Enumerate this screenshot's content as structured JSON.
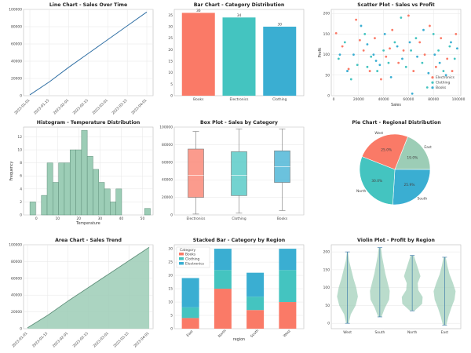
{
  "colors": {
    "red": "#fa7a67",
    "teal": "#44c4c0",
    "blue": "#3aaed2",
    "sage": "#9ccdb6",
    "sageDark": "#5f8f7a",
    "line": "#2f6fa4"
  },
  "chart_data": [
    {
      "id": "line",
      "type": "line",
      "title": "Line Chart - Sales Over Time",
      "x": [
        "2023-01-01",
        "2023-01-15",
        "2023-02-01",
        "2023-02-15",
        "2023-03-01",
        "2023-03-15",
        "2023-04-01"
      ],
      "y": [
        1000,
        16000,
        33000,
        49000,
        65000,
        81000,
        97000
      ],
      "ylim": [
        0,
        100000
      ],
      "yticks": [
        "0",
        "20000",
        "40000",
        "60000",
        "80000",
        "100000"
      ],
      "grid": true
    },
    {
      "id": "bar",
      "type": "bar",
      "title": "Bar Chart - Category Distribution",
      "categories": [
        "Books",
        "Electronics",
        "Clothing"
      ],
      "values": [
        36,
        34,
        30
      ],
      "ylim": [
        0,
        36
      ],
      "yticks": [
        "0",
        "5",
        "10",
        "15",
        "20",
        "25",
        "30",
        "35"
      ],
      "colors": [
        "#fa7a67",
        "#44c4c0",
        "#3aaed2"
      ]
    },
    {
      "id": "scatter",
      "type": "scatter",
      "title": "Scatter Plot - Sales vs Profit",
      "xlabel": "Sales",
      "ylabel": "Profit",
      "xlim": [
        0,
        100000
      ],
      "ylim": [
        0,
        210
      ],
      "xticks": [
        "0",
        "20000",
        "40000",
        "60000",
        "80000",
        "100000"
      ],
      "yticks": [
        "0",
        "50",
        "100",
        "150",
        "200"
      ],
      "legend": [
        "Electronics",
        "Clothing",
        "Books"
      ],
      "legend_position": "bottom-right",
      "series": [
        {
          "name": "Electronics",
          "color": "#fa7a67",
          "points": [
            [
              2000,
              152
            ],
            [
              7000,
              120
            ],
            [
              12000,
              65
            ],
            [
              18000,
              185
            ],
            [
              24000,
              110
            ],
            [
              29000,
              60
            ],
            [
              33000,
              140
            ],
            [
              38000,
              40
            ],
            [
              42000,
              95
            ],
            [
              47000,
              160
            ],
            [
              52000,
              80
            ],
            [
              56000,
              110
            ],
            [
              60000,
              195
            ],
            [
              64000,
              60
            ],
            [
              69000,
              130
            ],
            [
              73000,
              100
            ],
            [
              77000,
              170
            ],
            [
              82000,
              70
            ],
            [
              86000,
              140
            ],
            [
              91000,
              90
            ],
            [
              95000,
              60
            ],
            [
              98000,
              150
            ],
            [
              45000,
              115
            ],
            [
              21000,
              135
            ]
          ]
        },
        {
          "name": "Clothing",
          "color": "#44c4c0",
          "points": [
            [
              4000,
              90
            ],
            [
              9000,
              130
            ],
            [
              14000,
              40
            ],
            [
              19000,
              75
            ],
            [
              25000,
              150
            ],
            [
              30000,
              95
            ],
            [
              35000,
              60
            ],
            [
              40000,
              110
            ],
            [
              44000,
              80
            ],
            [
              49000,
              130
            ],
            [
              54000,
              190
            ],
            [
              58000,
              70
            ],
            [
              62000,
              110
            ],
            [
              66000,
              140
            ],
            [
              71000,
              80
            ],
            [
              75000,
              20
            ],
            [
              80000,
              150
            ],
            [
              84000,
              110
            ],
            [
              88000,
              60
            ],
            [
              93000,
              120
            ],
            [
              97000,
              90
            ],
            [
              27000,
              70
            ]
          ]
        },
        {
          "name": "Books",
          "color": "#3aaed2",
          "points": [
            [
              5000,
              100
            ],
            [
              11000,
              60
            ],
            [
              16000,
              100
            ],
            [
              22000,
              170
            ],
            [
              27000,
              125
            ],
            [
              32000,
              100
            ],
            [
              37000,
              75
            ],
            [
              41000,
              150
            ],
            [
              46000,
              45
            ],
            [
              51000,
              120
            ],
            [
              55000,
              90
            ],
            [
              61000,
              130
            ],
            [
              63000,
              5
            ],
            [
              67000,
              95
            ],
            [
              72000,
              160
            ],
            [
              76000,
              55
            ],
            [
              81000,
              100
            ],
            [
              85000,
              80
            ],
            [
              90000,
              50
            ],
            [
              94000,
              130
            ],
            [
              99000,
              115
            ],
            [
              34000,
              85
            ]
          ]
        }
      ]
    },
    {
      "id": "hist",
      "type": "bar",
      "title": "Histogram - Temperature Distribution",
      "xlabel": "Temperature",
      "ylabel": "Frequency",
      "bin_start": -3,
      "bin_width": 2.7,
      "values": [
        2,
        0,
        3,
        8,
        5,
        8,
        8,
        10,
        10,
        13,
        9,
        7,
        5,
        4,
        2,
        4,
        0,
        0,
        0,
        0,
        1
      ],
      "ylim": [
        0,
        13.5
      ],
      "xticks": [
        "0",
        "10",
        "20",
        "30",
        "40",
        "50"
      ],
      "yticks": [
        "0",
        "2",
        "4",
        "6",
        "8",
        "10",
        "12"
      ]
    },
    {
      "id": "box",
      "type": "box",
      "title": "Box Plot - Sales by Category",
      "categories": [
        "Electronics",
        "Clothing",
        "Books"
      ],
      "stats": [
        [
          1000,
          20000,
          45000,
          75000,
          95000
        ],
        [
          2000,
          22000,
          45000,
          72000,
          98000
        ],
        [
          5000,
          37000,
          55000,
          73000,
          98000
        ]
      ],
      "colors": [
        "#fa7a67",
        "#44c4c0",
        "#3aaed2"
      ],
      "ylim": [
        0,
        100000
      ],
      "yticks": [
        "0",
        "20000",
        "40000",
        "60000",
        "80000",
        "100000"
      ]
    },
    {
      "id": "pie",
      "type": "pie",
      "title": "Pie Chart - Regional Distribution",
      "labels": [
        "East",
        "South",
        "North",
        "West"
      ],
      "values": [
        19.0,
        25.9,
        30.0,
        25.0
      ],
      "pct": [
        "19.0%",
        "25.9%",
        "30.0%",
        "25.0%"
      ],
      "colors": [
        "#9ccdb6",
        "#3aaed2",
        "#44c4c0",
        "#fa7a67"
      ]
    },
    {
      "id": "area",
      "type": "area",
      "title": "Area Chart - Sales Trend",
      "x": [
        "2023-01-01",
        "2023-01-15",
        "2023-02-01",
        "2023-02-15",
        "2023-03-01",
        "2023-03-15",
        "2023-04-01"
      ],
      "y": [
        1000,
        16000,
        33000,
        49000,
        65000,
        81000,
        97000
      ],
      "ylim": [
        0,
        100000
      ],
      "yticks": [
        "0",
        "20000",
        "40000",
        "60000",
        "80000",
        "100000"
      ]
    },
    {
      "id": "stack",
      "type": "bar",
      "title": "Stacked Bar - Category by Region",
      "xlabel": "region",
      "categories": [
        "East",
        "North",
        "South",
        "West"
      ],
      "series": [
        {
          "name": "Books",
          "color": "#fa7a67",
          "values": [
            4,
            15,
            7,
            10
          ]
        },
        {
          "name": "Clothing",
          "color": "#44c4c0",
          "values": [
            4,
            7,
            5,
            12
          ]
        },
        {
          "name": "Electronics",
          "color": "#3aaed2",
          "values": [
            11,
            8,
            9,
            8
          ]
        }
      ],
      "legend_title": "Category",
      "legend_position": "top-left",
      "ylim": [
        0,
        30
      ],
      "yticks": [
        "0",
        "5",
        "10",
        "15",
        "20",
        "25",
        "30"
      ]
    },
    {
      "id": "violin",
      "type": "violin",
      "title": "Violin Plot - Profit by Region",
      "categories": [
        "West",
        "South",
        "North",
        "East"
      ],
      "ranges": [
        [
          0,
          200
        ],
        [
          18,
          212
        ],
        [
          35,
          190
        ],
        [
          -5,
          185
        ]
      ],
      "ylim": [
        0,
        200
      ],
      "yticks": [
        "0",
        "50",
        "100",
        "150",
        "200"
      ]
    }
  ]
}
